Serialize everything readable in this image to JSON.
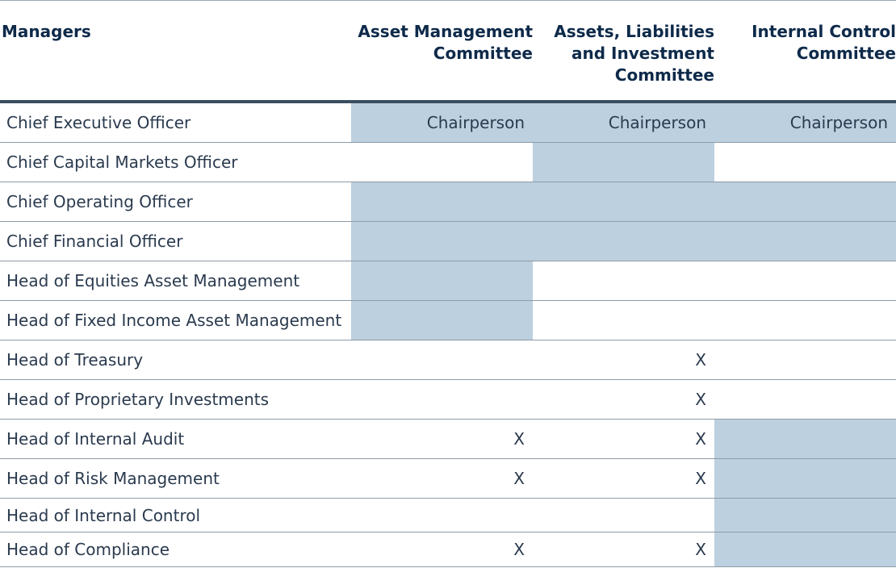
{
  "header": {
    "managers": "Managers",
    "col1": [
      "Asset Management",
      "Committee"
    ],
    "col2": [
      "Assets, Liabilities",
      "and Investment",
      "Committee"
    ],
    "col3": [
      "Internal Control",
      "Committee"
    ]
  },
  "rows": [
    {
      "name": "Chief Executive Officer",
      "c1": "Chairperson",
      "c2": "Chairperson",
      "c3": "Chairperson"
    },
    {
      "name": "Chief Capital Markets Officer",
      "c1": "",
      "c2": "",
      "c3": ""
    },
    {
      "name": "Chief Operating Officer",
      "c1": "",
      "c2": "",
      "c3": ""
    },
    {
      "name": "Chief Financial Officer",
      "c1": "",
      "c2": "",
      "c3": ""
    },
    {
      "name": "Head of Equities Asset Management",
      "c1": "",
      "c2": "",
      "c3": ""
    },
    {
      "name": "Head of Fixed Income Asset Management",
      "c1": "",
      "c2": "",
      "c3": ""
    },
    {
      "name": "Head of Treasury",
      "c1": "",
      "c2": "X",
      "c3": ""
    },
    {
      "name": "Head of Proprietary Investments",
      "c1": "",
      "c2": "X",
      "c3": ""
    },
    {
      "name": "Head of Internal Audit",
      "c1": "X",
      "c2": "X",
      "c3": ""
    },
    {
      "name": "Head of Risk Management",
      "c1": "X",
      "c2": "X",
      "c3": ""
    },
    {
      "name": "Head of Internal Control",
      "c1": "",
      "c2": "",
      "c3": ""
    },
    {
      "name": "Head of Compliance",
      "c1": "X",
      "c2": "X",
      "c3": ""
    }
  ],
  "colors": {
    "shade": "#bcd0df",
    "rule": "#3a4d61",
    "header_text": "#0e2a4a"
  }
}
